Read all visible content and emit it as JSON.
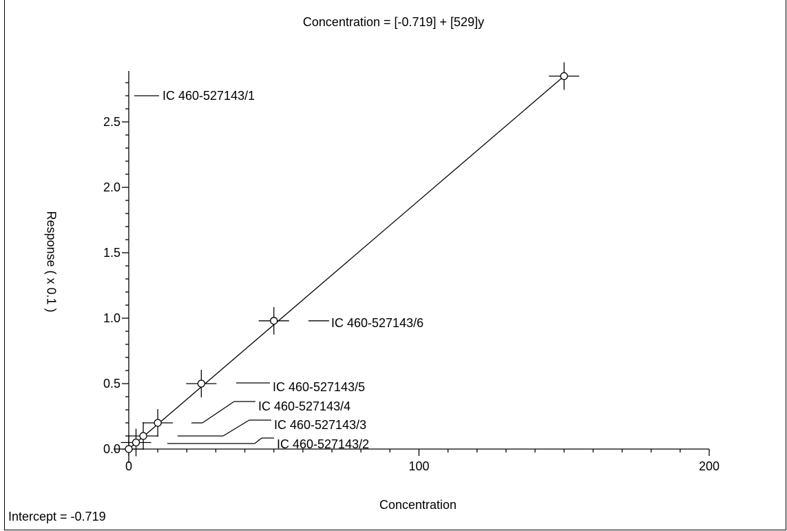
{
  "chart_data": {
    "type": "scatter",
    "title": "Concentration = [-0.719] + [529]y",
    "xlabel": "Concentration",
    "ylabel": "Response ( x 0.1 )",
    "xlim": [
      0,
      200
    ],
    "ylim": [
      0,
      2.9
    ],
    "x_ticks": [
      "0",
      "100",
      "200"
    ],
    "y_ticks": [
      "0.0",
      "0.5",
      "1.0",
      "1.5",
      "2.0",
      "2.5"
    ],
    "points": [
      {
        "x": 0,
        "y": 0.0
      },
      {
        "x": 2.5,
        "y": 0.05
      },
      {
        "x": 5,
        "y": 0.1
      },
      {
        "x": 10,
        "y": 0.2
      },
      {
        "x": 25,
        "y": 0.5
      },
      {
        "x": 50,
        "y": 0.98
      },
      {
        "x": 150,
        "y": 2.85
      }
    ],
    "fit_line": {
      "x": [
        0,
        150
      ],
      "y": [
        0.0,
        2.85
      ]
    },
    "annotations": [
      {
        "text": "IC 460-527143/1",
        "y": 2.7
      },
      {
        "text": "IC 460-527143/2",
        "y": 0.05
      },
      {
        "text": "IC 460-527143/3",
        "y": 0.1
      },
      {
        "text": "IC 460-527143/4",
        "y": 0.2
      },
      {
        "text": "IC 460-527143/5",
        "y": 0.5
      },
      {
        "text": "IC 460-527143/6",
        "y": 0.98
      }
    ],
    "footer": "Intercept = -0.719"
  }
}
